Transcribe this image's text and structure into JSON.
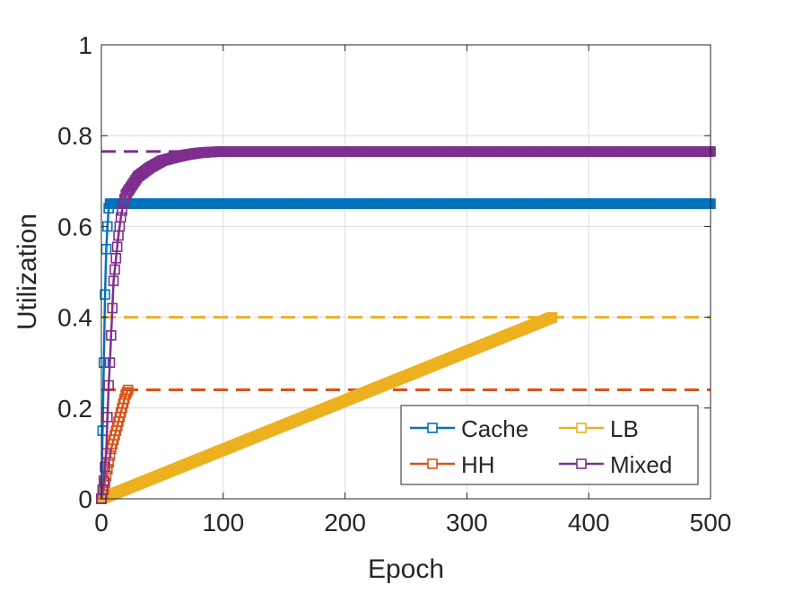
{
  "chart_data": {
    "type": "line",
    "title": "",
    "xlabel": "Epoch",
    "ylabel": "Utilization",
    "xlim": [
      0,
      500
    ],
    "ylim": [
      0,
      1
    ],
    "xticks": [
      0,
      100,
      200,
      300,
      400,
      500
    ],
    "yticks": [
      0,
      0.2,
      0.4,
      0.6,
      0.8,
      1
    ],
    "xtick_labels": [
      "0",
      "100",
      "200",
      "300",
      "400",
      "500"
    ],
    "ytick_labels": [
      "0",
      "0.2",
      "0.4",
      "0.6",
      "0.8",
      "1"
    ],
    "grid": true,
    "legend_position": "bottom-right",
    "series": [
      {
        "name": "Cache",
        "color": "#0072BD",
        "marker": "square",
        "values": [
          [
            0,
            0
          ],
          [
            1,
            0.15
          ],
          [
            2,
            0.3
          ],
          [
            3,
            0.45
          ],
          [
            4,
            0.55
          ],
          [
            5,
            0.6
          ],
          [
            6,
            0.64
          ],
          [
            7,
            0.65
          ],
          [
            500,
            0.65
          ]
        ],
        "limit": null
      },
      {
        "name": "HH",
        "color": "#D95319",
        "marker": "square",
        "values": [
          [
            0,
            0
          ],
          [
            2,
            0.02
          ],
          [
            4,
            0.05
          ],
          [
            6,
            0.08
          ],
          [
            8,
            0.11
          ],
          [
            10,
            0.13
          ],
          [
            12,
            0.15
          ],
          [
            14,
            0.17
          ],
          [
            16,
            0.19
          ],
          [
            18,
            0.21
          ],
          [
            20,
            0.23
          ],
          [
            22,
            0.24
          ]
        ],
        "limit": 0.24
      },
      {
        "name": "LB",
        "color": "#EDB120",
        "marker": "square",
        "values": [
          [
            0,
            0
          ],
          [
            370,
            0.4
          ]
        ],
        "limit": 0.4
      },
      {
        "name": "Mixed",
        "color": "#7E2F8E",
        "marker": "square",
        "values": [
          [
            0,
            0
          ],
          [
            2,
            0.04
          ],
          [
            4,
            0.1
          ],
          [
            5,
            0.18
          ],
          [
            6,
            0.25
          ],
          [
            7,
            0.3
          ],
          [
            8,
            0.36
          ],
          [
            9,
            0.42
          ],
          [
            10,
            0.48
          ],
          [
            12,
            0.53
          ],
          [
            14,
            0.58
          ],
          [
            16,
            0.62
          ],
          [
            18,
            0.65
          ],
          [
            20,
            0.67
          ],
          [
            25,
            0.69
          ],
          [
            30,
            0.71
          ],
          [
            40,
            0.73
          ],
          [
            50,
            0.745
          ],
          [
            60,
            0.752
          ],
          [
            70,
            0.758
          ],
          [
            80,
            0.762
          ],
          [
            90,
            0.764
          ],
          [
            100,
            0.765
          ],
          [
            500,
            0.765
          ]
        ],
        "limit": 0.765
      }
    ]
  }
}
